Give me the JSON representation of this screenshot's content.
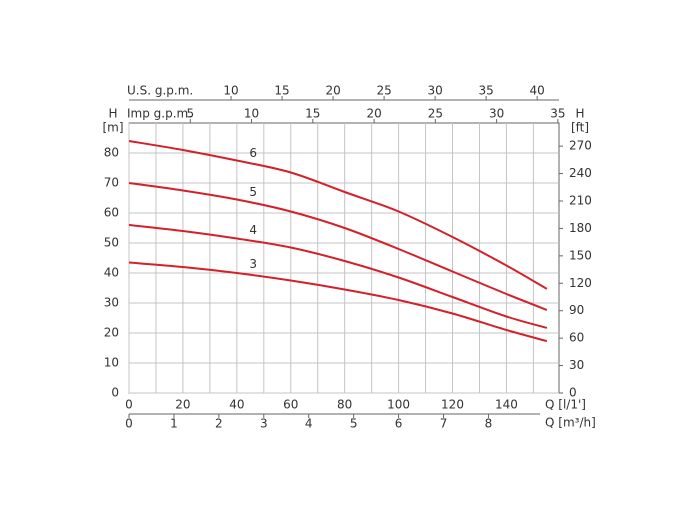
{
  "chart_data": {
    "type": "line",
    "x_label": "Q [l/1']",
    "x2_label": "Q [m³/h]",
    "x3_label": "U.S. g.p.m.",
    "x4_label": "Imp g.p.m.",
    "y_label": "H",
    "y_unit": "[m]",
    "y2_label": "H",
    "y2_unit": "[ft]",
    "x": [
      0,
      20,
      40,
      60,
      80,
      100,
      120,
      140,
      155
    ],
    "series": [
      {
        "name": "3",
        "color": "#d4202a",
        "values": [
          43.5,
          42,
          40,
          37.5,
          34.5,
          31,
          26.5,
          21,
          17.3
        ]
      },
      {
        "name": "4",
        "color": "#d4202a",
        "values": [
          56,
          54,
          51.5,
          48.5,
          44,
          38.5,
          32,
          25.5,
          21.7
        ]
      },
      {
        "name": "5",
        "color": "#d4202a",
        "values": [
          70,
          67.5,
          64.5,
          60.5,
          55,
          48,
          40.5,
          33,
          27.7
        ]
      },
      {
        "name": "6",
        "color": "#d4202a",
        "values": [
          84,
          81,
          77.5,
          73.5,
          67,
          60.5,
          52,
          42.5,
          34.7
        ]
      }
    ],
    "xlim": [
      0,
      159.5
    ],
    "xticks": [
      0,
      20,
      40,
      60,
      80,
      100,
      120,
      140
    ],
    "x_minor_ticks": [
      10,
      30,
      50,
      70,
      90,
      110,
      130,
      150
    ],
    "ylim": [
      0,
      90
    ],
    "yticks": [
      0,
      10,
      20,
      30,
      40,
      50,
      60,
      70,
      80
    ],
    "y2lim": [
      0,
      295.3
    ],
    "y2ticks": [
      0,
      30,
      60,
      90,
      120,
      150,
      180,
      210,
      240,
      270
    ],
    "x2lim": [
      0,
      9.57
    ],
    "x2ticks": [
      0,
      1,
      2,
      3,
      4,
      5,
      6,
      7,
      8
    ],
    "x3lim": [
      0,
      42.14
    ],
    "x3ticks": [
      10,
      15,
      20,
      25,
      30,
      35,
      40
    ],
    "x4lim": [
      0,
      35.09
    ],
    "x4ticks": [
      5,
      10,
      15,
      20,
      25,
      30,
      35
    ],
    "grid": true
  }
}
